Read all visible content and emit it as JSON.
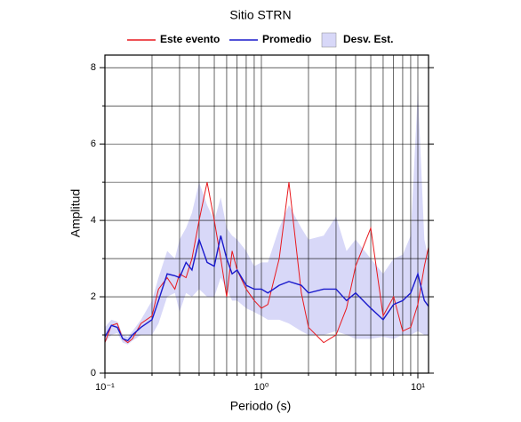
{
  "chart_data": {
    "type": "line",
    "title": "Sitio STRN",
    "xlabel": "Periodo (s)",
    "ylabel": "Amplitud",
    "xscale": "log",
    "grid": true,
    "legend": "top",
    "xlim": [
      0.1,
      11.7
    ],
    "ylim": [
      0,
      8.33
    ],
    "xticks": [
      {
        "value": 0.1,
        "label": "10⁻¹"
      },
      {
        "value": 1,
        "label": "10⁰"
      },
      {
        "value": 10,
        "label": "10¹"
      }
    ],
    "x_minor_ticks": [
      0.2,
      0.3,
      0.4,
      0.5,
      0.6,
      0.7,
      0.8,
      0.9,
      2,
      3,
      4,
      5,
      6,
      7,
      8,
      9
    ],
    "yticks": [
      0,
      2,
      4,
      6,
      8
    ],
    "y_minor_ticks": [
      1,
      3,
      5,
      7
    ],
    "x": [
      0.1,
      0.11,
      0.12,
      0.13,
      0.14,
      0.15,
      0.17,
      0.2,
      0.22,
      0.25,
      0.28,
      0.3,
      0.33,
      0.36,
      0.4,
      0.45,
      0.5,
      0.55,
      0.6,
      0.65,
      0.7,
      0.8,
      0.9,
      1.0,
      1.1,
      1.3,
      1.5,
      1.8,
      2.0,
      2.5,
      3.0,
      3.5,
      4,
      5,
      6,
      7,
      8,
      9,
      10,
      11,
      11.7
    ],
    "band": {
      "name": "Desv. Est.",
      "color": "#d8d8f8",
      "upper": [
        1.2,
        1.4,
        1.35,
        1.0,
        0.95,
        1.1,
        1.4,
        1.9,
        2.5,
        3.2,
        3.0,
        3.5,
        3.8,
        4.2,
        5.0,
        4.4,
        4.0,
        4.6,
        3.8,
        3.6,
        3.5,
        3.2,
        2.8,
        2.9,
        2.9,
        3.8,
        4.4,
        3.8,
        3.5,
        3.6,
        4.1,
        3.2,
        3.5,
        3.0,
        2.6,
        3.0,
        3.1,
        3.6,
        7.4,
        3.5,
        3.0
      ],
      "lower": [
        0.8,
        1.0,
        1.05,
        0.8,
        0.75,
        0.85,
        1.0,
        1.0,
        1.3,
        2.0,
        2.1,
        1.6,
        2.1,
        2.0,
        2.2,
        2.0,
        2.0,
        2.5,
        2.2,
        1.9,
        1.9,
        1.7,
        1.6,
        1.5,
        1.4,
        1.4,
        1.3,
        1.1,
        1.0,
        1.0,
        1.1,
        1.0,
        0.9,
        0.9,
        0.95,
        0.9,
        1.0,
        1.0,
        1.1,
        1.0,
        1.0
      ]
    },
    "series": [
      {
        "name": "Este evento",
        "color": "#e8191e",
        "values": [
          0.8,
          1.25,
          1.3,
          0.9,
          0.8,
          0.9,
          1.3,
          1.5,
          2.2,
          2.5,
          2.2,
          2.6,
          2.5,
          3.0,
          4.0,
          5.0,
          4.0,
          3.0,
          2.0,
          3.2,
          2.7,
          2.2,
          1.9,
          1.7,
          1.8,
          3.0,
          5.0,
          2.1,
          1.2,
          0.8,
          1.0,
          1.7,
          2.8,
          3.8,
          1.5,
          2.0,
          1.1,
          1.2,
          1.8,
          2.8,
          3.3
        ]
      },
      {
        "name": "Promedio",
        "color": "#1a1acc",
        "values": [
          0.95,
          1.25,
          1.2,
          0.9,
          0.85,
          1.0,
          1.2,
          1.4,
          1.9,
          2.6,
          2.55,
          2.5,
          2.9,
          2.7,
          3.5,
          2.9,
          2.8,
          3.6,
          3.0,
          2.6,
          2.7,
          2.3,
          2.2,
          2.2,
          2.1,
          2.3,
          2.4,
          2.3,
          2.1,
          2.2,
          2.2,
          1.9,
          2.1,
          1.7,
          1.4,
          1.8,
          1.9,
          2.1,
          2.6,
          1.9,
          1.75
        ]
      }
    ]
  }
}
